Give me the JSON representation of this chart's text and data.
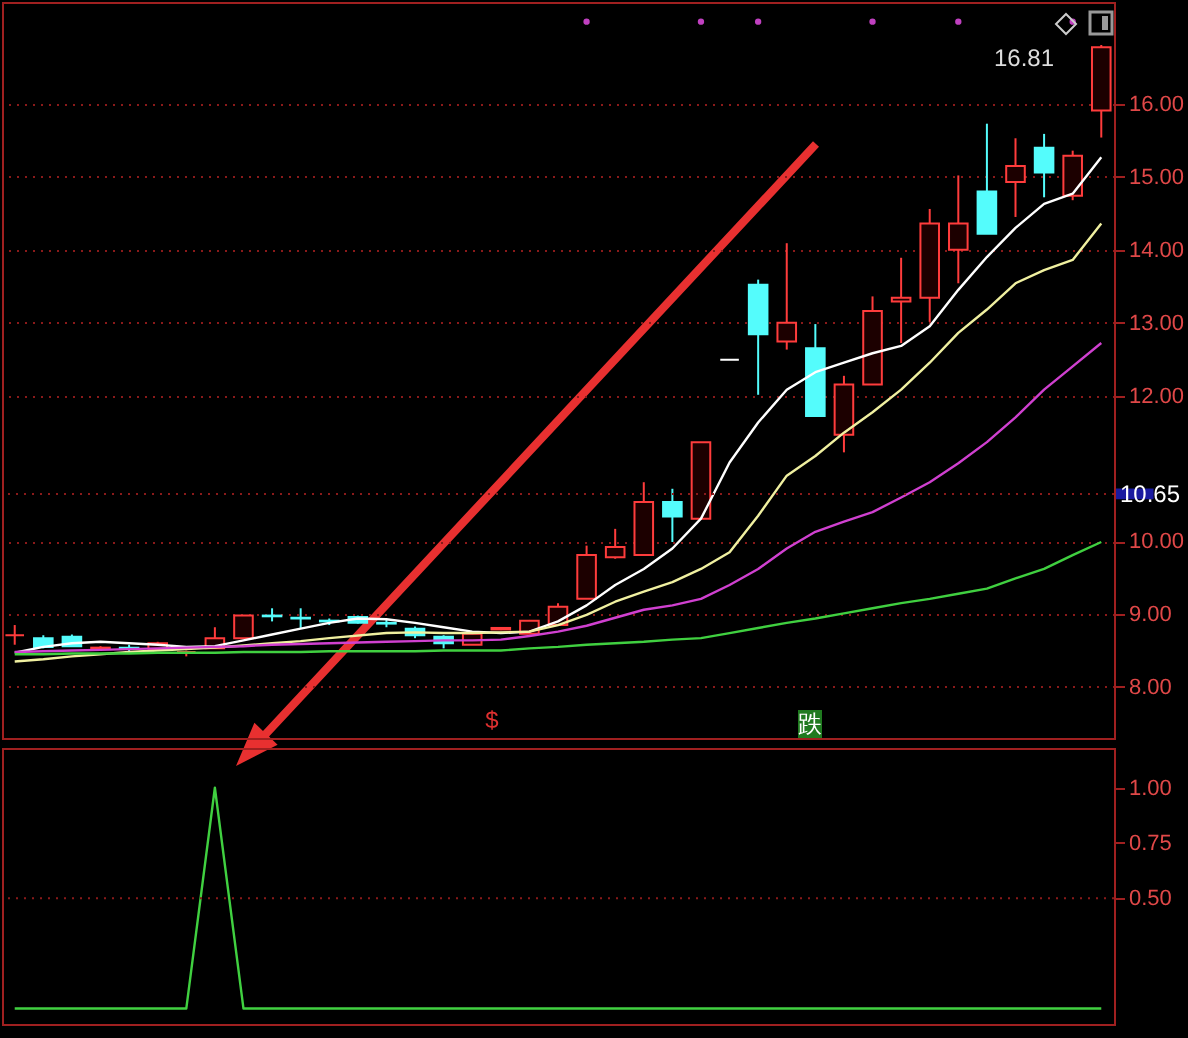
{
  "chart_data": [
    {
      "type": "candlestick",
      "categories": [
        null,
        null,
        null,
        null,
        null,
        null,
        null,
        null,
        null,
        null,
        null,
        null,
        null,
        null,
        null,
        null,
        null,
        null,
        null,
        null,
        null,
        null,
        null,
        null,
        null,
        null,
        null,
        null,
        null,
        null,
        null,
        null,
        null,
        null,
        null,
        null,
        null,
        null,
        null
      ],
      "ohlc": [
        [
          8.71,
          8.85,
          8.58,
          8.71
        ],
        [
          8.67,
          8.71,
          8.53,
          8.55
        ],
        [
          8.69,
          8.72,
          8.55,
          8.56
        ],
        [
          8.52,
          8.56,
          8.5,
          8.54
        ],
        [
          8.54,
          8.58,
          8.48,
          8.52
        ],
        [
          8.51,
          8.62,
          8.5,
          8.6
        ],
        [
          8.48,
          8.5,
          8.42,
          8.48
        ],
        [
          8.53,
          8.82,
          8.53,
          8.67
        ],
        [
          8.67,
          8.98,
          8.67,
          8.98
        ],
        [
          8.98,
          9.08,
          8.9,
          8.97
        ],
        [
          8.95,
          9.08,
          8.81,
          8.94
        ],
        [
          8.91,
          8.94,
          8.85,
          8.9
        ],
        [
          8.96,
          8.98,
          8.87,
          8.88
        ],
        [
          8.88,
          8.92,
          8.82,
          8.87
        ],
        [
          8.8,
          8.83,
          8.67,
          8.71
        ],
        [
          8.69,
          8.71,
          8.53,
          8.6
        ],
        [
          8.58,
          8.74,
          8.58,
          8.73
        ],
        [
          8.79,
          8.82,
          8.78,
          8.81
        ],
        [
          8.73,
          8.92,
          8.73,
          8.91
        ],
        [
          8.85,
          9.15,
          8.85,
          9.1
        ],
        [
          9.21,
          9.94,
          9.21,
          9.81
        ],
        [
          9.78,
          10.17,
          9.76,
          9.92
        ],
        [
          9.81,
          10.81,
          9.81,
          10.54
        ],
        [
          10.54,
          10.72,
          9.99,
          10.34
        ],
        [
          10.31,
          11.36,
          10.31,
          11.36
        ],
        [
          12.49,
          12.49,
          12.49,
          12.49
        ],
        [
          13.52,
          13.59,
          12.01,
          12.84
        ],
        [
          12.74,
          14.09,
          12.63,
          13.0
        ],
        [
          12.65,
          12.98,
          11.72,
          11.72
        ],
        [
          11.46,
          12.27,
          11.22,
          12.15
        ],
        [
          12.15,
          13.36,
          12.15,
          13.16
        ],
        [
          13.29,
          13.89,
          12.72,
          13.34
        ],
        [
          13.34,
          14.56,
          13.01,
          14.36
        ],
        [
          14.0,
          15.02,
          13.54,
          14.36
        ],
        [
          14.8,
          15.73,
          14.22,
          14.22
        ],
        [
          14.93,
          15.53,
          14.45,
          15.15
        ],
        [
          15.4,
          15.59,
          14.72,
          15.06
        ],
        [
          14.74,
          15.36,
          14.68,
          15.29
        ],
        [
          15.91,
          16.81,
          15.54,
          16.78
        ]
      ],
      "colors": [
        "#ff3c3c",
        "#54fcfc",
        "#54fcfc",
        "#ff3c3c",
        "#54fcfc",
        "#ff3c3c",
        "#ff3c3c",
        "#ff3c3c",
        "#ff3c3c",
        "#54fcfc",
        "#54fcfc",
        "#54fcfc",
        "#54fcfc",
        "#54fcfc",
        "#54fcfc",
        "#54fcfc",
        "#ff3c3c",
        "#ff3c3c",
        "#ff3c3c",
        "#ff3c3c",
        "#ff3c3c",
        "#ff3c3c",
        "#ff3c3c",
        "#54fcfc",
        "#ff3c3c",
        "#ffffff",
        "#54fcfc",
        "#ff3c3c",
        "#54fcfc",
        "#ff3c3c",
        "#ff3c3c",
        "#ff3c3c",
        "#ff3c3c",
        "#ff3c3c",
        "#54fcfc",
        "#ff3c3c",
        "#54fcfc",
        "#ff3c3c",
        "#ff3c3c"
      ],
      "series": [
        {
          "type": "line",
          "color": "#ffffff",
          "values": [
            8.47,
            8.55,
            8.6,
            8.62,
            8.6,
            8.58,
            8.55,
            8.56,
            8.64,
            8.72,
            8.8,
            8.88,
            8.94,
            8.93,
            8.88,
            8.82,
            8.76,
            8.74,
            8.76,
            8.9,
            9.12,
            9.4,
            9.62,
            9.9,
            10.31,
            11.08,
            11.63,
            12.08,
            12.32,
            12.45,
            12.58,
            12.68,
            12.95,
            13.45,
            13.9,
            14.3,
            14.63,
            14.77,
            15.27
          ]
        },
        {
          "type": "line",
          "color": "#f0f0a0",
          "values": [
            8.35,
            8.38,
            8.42,
            8.45,
            8.48,
            8.5,
            8.52,
            8.54,
            8.57,
            8.6,
            8.63,
            8.67,
            null,
            8.74,
            8.75,
            8.74,
            8.74,
            8.75,
            8.76,
            8.85,
            8.99,
            9.17,
            9.31,
            9.44,
            9.62,
            9.85,
            10.35,
            10.9,
            11.17,
            11.49,
            11.77,
            12.08,
            12.45,
            12.86,
            13.18,
            13.54,
            13.72,
            13.86,
            14.36
          ]
        },
        {
          "type": "line",
          "color": "#d040d0",
          "values": [
            8.48,
            8.49,
            8.5,
            8.51,
            8.52,
            8.53,
            8.54,
            8.55,
            8.56,
            8.58,
            8.59,
            8.6,
            8.61,
            8.62,
            8.63,
            8.64,
            8.64,
            8.65,
            8.7,
            8.76,
            8.84,
            8.95,
            9.06,
            9.12,
            9.21,
            9.4,
            9.62,
            9.9,
            10.13,
            10.27,
            10.4,
            10.6,
            10.81,
            11.07,
            11.36,
            11.7,
            12.08,
            12.4,
            12.72
          ]
        },
        {
          "type": "line",
          "color": "#40d040",
          "values": [
            8.45,
            8.45,
            8.46,
            8.46,
            8.46,
            8.47,
            8.47,
            8.47,
            8.48,
            8.48,
            8.48,
            8.49,
            8.49,
            8.49,
            8.49,
            8.5,
            8.5,
            8.5,
            8.53,
            8.55,
            8.58,
            8.6,
            8.62,
            8.65,
            8.67,
            8.74,
            8.81,
            8.88,
            8.94,
            9.01,
            9.08,
            9.15,
            9.21,
            9.28,
            9.35,
            9.49,
            9.62,
            9.81,
            9.99
          ]
        },
        {
          "type": "scatter",
          "color": "#c040c0",
          "values": [
            null,
            null,
            null,
            null,
            null,
            null,
            null,
            null,
            null,
            null,
            null,
            null,
            null,
            null,
            null,
            null,
            null,
            null,
            null,
            null,
            17.13,
            null,
            null,
            null,
            17.13,
            null,
            17.13,
            null,
            null,
            null,
            17.13,
            null,
            null,
            17.13,
            null,
            null,
            null,
            17.13,
            null
          ]
        }
      ],
      "ylim": [
        7.3,
        17.4
      ],
      "yticks": [
        {
          "value": 8,
          "label": "8.00"
        },
        {
          "value": 9,
          "label": "9.00"
        },
        {
          "value": 10,
          "label": "10.00"
        },
        {
          "value": 12,
          "label": "12.00"
        },
        {
          "value": 13,
          "label": "13.00"
        },
        {
          "value": 14,
          "label": "14.00"
        },
        {
          "value": 15,
          "label": "15.00"
        },
        {
          "value": 16,
          "label": "16.00"
        }
      ],
      "grid": "y",
      "tick_labels": "y",
      "ref_lines": [
        {
          "axis": "y",
          "value": 10.65,
          "label": "10.65",
          "color": "#8a1a1a",
          "line_style": "dotted"
        }
      ],
      "annotations": [
        "16.81",
        "$",
        "跌"
      ]
    },
    {
      "type": "line",
      "categories": [
        null,
        null,
        null,
        null,
        null,
        null,
        null,
        null,
        null,
        null,
        null,
        null,
        null,
        null,
        null,
        null,
        null,
        null,
        null,
        null,
        null,
        null,
        null,
        null,
        null,
        null,
        null,
        null,
        null,
        null,
        null,
        null,
        null,
        null,
        null,
        null,
        null,
        null,
        null
      ],
      "series": [
        {
          "color": "#40d040",
          "values": [
            0,
            0,
            0,
            0,
            0,
            0,
            0,
            1,
            0,
            0,
            0,
            0,
            0,
            0,
            0,
            0,
            0,
            0,
            0,
            0,
            0,
            0,
            0,
            0,
            0,
            0,
            0,
            0,
            0,
            0,
            0,
            0,
            0,
            0,
            0,
            0,
            0,
            0,
            0
          ]
        }
      ],
      "ylim": [
        -0.07,
        1.18
      ],
      "yticks": [
        {
          "value": 0.5,
          "label": "0.50"
        },
        {
          "value": 0.75,
          "label": "0.75"
        },
        {
          "value": 1,
          "label": "1.00"
        }
      ],
      "grid": false,
      "tick_labels": "y",
      "ref_lines": [
        {
          "axis": "y",
          "value": 0.5,
          "color": "#8a1a1a",
          "line_style": "dotted"
        }
      ]
    }
  ]
}
